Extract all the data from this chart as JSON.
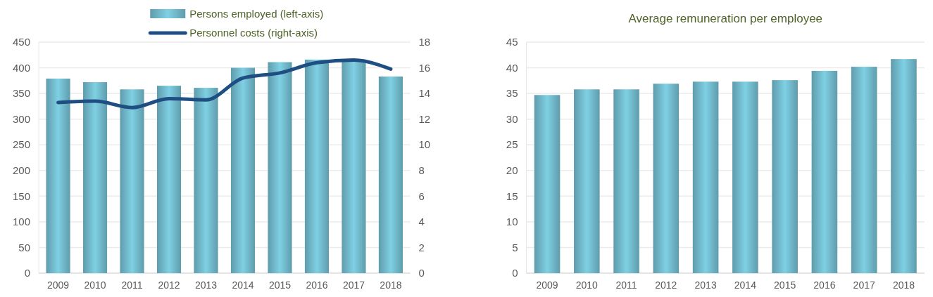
{
  "chart_data": [
    {
      "type": "bar",
      "categories": [
        "2009",
        "2010",
        "2011",
        "2012",
        "2013",
        "2014",
        "2015",
        "2016",
        "2017",
        "2018"
      ],
      "series": [
        {
          "name": "Persons employed (left-axis)",
          "color": "#6aaebf",
          "values": [
            379,
            372,
            358,
            365,
            361,
            400,
            411,
            416,
            413,
            383
          ]
        },
        {
          "name": "Personnel costs (right-axis)",
          "type": "line",
          "axis": "y2",
          "color": "#1f4e83",
          "values": [
            13.3,
            13.4,
            12.9,
            13.6,
            13.5,
            15.2,
            15.6,
            16.4,
            16.6,
            15.9
          ]
        }
      ],
      "ylim": [
        0,
        450
      ],
      "yticks": [
        0,
        50,
        100,
        150,
        200,
        250,
        300,
        350,
        400,
        450
      ],
      "y2lim": [
        0,
        18
      ],
      "y2ticks": [
        0,
        2,
        4,
        6,
        8,
        10,
        12,
        14,
        16,
        18
      ],
      "grid": "y",
      "legend": "top"
    },
    {
      "type": "bar",
      "title": "Average remuneration per employee",
      "categories": [
        "2009",
        "2010",
        "2011",
        "2012",
        "2013",
        "2014",
        "2015",
        "2016",
        "2017",
        "2018"
      ],
      "series": [
        {
          "color": "#6aaebf",
          "values": [
            34.7,
            35.8,
            35.8,
            36.9,
            37.3,
            37.3,
            37.6,
            39.4,
            40.2,
            41.7
          ]
        }
      ],
      "ylim": [
        0,
        45
      ],
      "yticks": [
        0,
        5,
        10,
        15,
        20,
        25,
        30,
        35,
        40,
        45
      ],
      "grid": "y",
      "legend": false
    }
  ]
}
